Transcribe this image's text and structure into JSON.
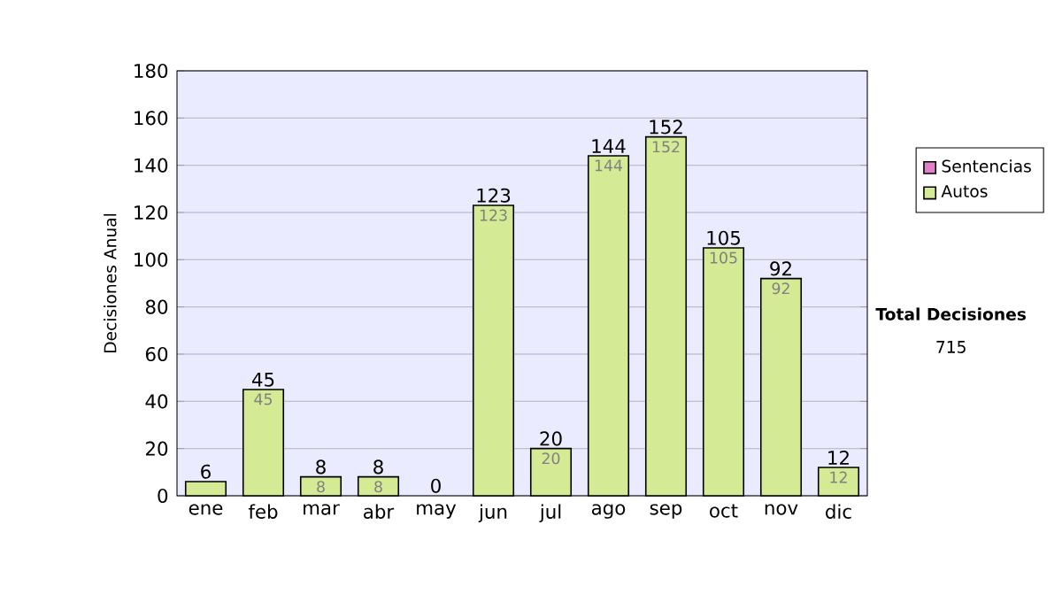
{
  "chart_data": {
    "type": "bar",
    "stacked": true,
    "ylabel": "Decisiones Anual",
    "categories": [
      "ene",
      "feb",
      "mar",
      "abr",
      "may",
      "jun",
      "jul",
      "ago",
      "sep",
      "oct",
      "nov",
      "dic"
    ],
    "series": [
      {
        "name": "Sentencias",
        "color": "#e080c8",
        "values": [
          0,
          0,
          0,
          0,
          0,
          0,
          0,
          0,
          0,
          0,
          0,
          0
        ]
      },
      {
        "name": "Autos",
        "color": "#d4ea94",
        "values": [
          6,
          45,
          8,
          8,
          0,
          123,
          20,
          144,
          152,
          105,
          92,
          12
        ],
        "value_labels": [
          null,
          "45",
          "8",
          "8",
          null,
          "123",
          "20",
          "144",
          "152",
          "105",
          "92",
          "12"
        ]
      }
    ],
    "totals": [
      "6",
      "45",
      "8",
      "8",
      "0",
      "123",
      "20",
      "144",
      "152",
      "105",
      "92",
      "12"
    ],
    "ylim": [
      0,
      180
    ],
    "yticks": [
      0,
      20,
      40,
      60,
      80,
      100,
      120,
      140,
      160,
      180
    ],
    "grid": "y",
    "legend": "right",
    "annotations": [
      "Total Decisiones",
      "715"
    ]
  }
}
